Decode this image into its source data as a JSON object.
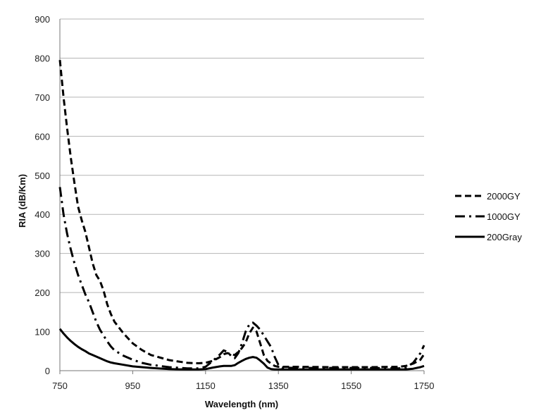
{
  "chart_data": {
    "type": "line",
    "xlabel": "Wavelength (nm)",
    "ylabel": "RIA (dB/Km)",
    "xlim": [
      750,
      1750
    ],
    "ylim": [
      0,
      900
    ],
    "xticks": [
      "750",
      "950",
      "1150",
      "1350",
      "1550",
      "1750"
    ],
    "yticks": [
      "0",
      "100",
      "200",
      "300",
      "400",
      "500",
      "600",
      "700",
      "800",
      "900"
    ],
    "grid": "horizontal",
    "legend_position": "right",
    "series": [
      {
        "name": "2000GY",
        "style": "dashed",
        "color": "#000000",
        "x": [
          750,
          760,
          770,
          780,
          790,
          800,
          810,
          820,
          830,
          840,
          850,
          860,
          870,
          880,
          890,
          900,
          925,
          950,
          975,
          1000,
          1050,
          1100,
          1130,
          1150,
          1170,
          1190,
          1200,
          1210,
          1220,
          1230,
          1240,
          1250,
          1260,
          1270,
          1280,
          1290,
          1300,
          1310,
          1320,
          1330,
          1340,
          1350,
          1400,
          1500,
          1600,
          1680,
          1700,
          1720,
          1740,
          1750
        ],
        "y": [
          795,
          700,
          620,
          545,
          480,
          420,
          385,
          355,
          315,
          275,
          245,
          230,
          205,
          170,
          145,
          125,
          95,
          70,
          53,
          40,
          27,
          20,
          19,
          20,
          25,
          35,
          42,
          45,
          42,
          40,
          48,
          58,
          72,
          95,
          110,
          100,
          70,
          40,
          25,
          18,
          12,
          10,
          10,
          9,
          9,
          10,
          12,
          18,
          28,
          42
        ]
      },
      {
        "name": "1000GY",
        "style": "dash-dot",
        "color": "#000000",
        "x": [
          750,
          760,
          770,
          780,
          790,
          800,
          810,
          820,
          830,
          840,
          850,
          860,
          870,
          880,
          890,
          900,
          925,
          950,
          975,
          1000,
          1050,
          1100,
          1130,
          1150,
          1170,
          1190,
          1200,
          1210,
          1220,
          1230,
          1240,
          1250,
          1260,
          1270,
          1280,
          1290,
          1300,
          1310,
          1320,
          1330,
          1340,
          1350,
          1360,
          1400,
          1500,
          1600,
          1680,
          1700,
          1720,
          1740,
          1750
        ],
        "y": [
          470,
          400,
          350,
          310,
          275,
          245,
          220,
          195,
          175,
          150,
          125,
          105,
          90,
          75,
          62,
          52,
          38,
          28,
          20,
          15,
          9,
          6,
          6,
          10,
          25,
          42,
          52,
          48,
          38,
          32,
          45,
          70,
          100,
          118,
          123,
          115,
          105,
          90,
          75,
          60,
          35,
          15,
          8,
          7,
          7,
          7,
          6,
          8,
          20,
          45,
          65
        ]
      },
      {
        "name": "200Gray",
        "style": "solid",
        "color": "#000000",
        "x": [
          750,
          760,
          770,
          780,
          790,
          800,
          810,
          820,
          830,
          840,
          850,
          860,
          870,
          880,
          890,
          900,
          925,
          950,
          975,
          1000,
          1050,
          1100,
          1130,
          1150,
          1170,
          1190,
          1200,
          1210,
          1220,
          1230,
          1240,
          1250,
          1260,
          1270,
          1280,
          1290,
          1300,
          1310,
          1320,
          1330,
          1340,
          1350,
          1400,
          1500,
          1600,
          1700,
          1720,
          1740,
          1750
        ],
        "y": [
          107,
          95,
          85,
          76,
          68,
          61,
          55,
          50,
          44,
          40,
          36,
          32,
          28,
          24,
          21,
          19,
          15,
          11,
          9,
          7,
          4,
          3,
          3,
          4,
          8,
          11,
          12,
          12,
          12,
          14,
          20,
          25,
          30,
          33,
          35,
          33,
          26,
          18,
          8,
          4,
          3,
          3,
          3,
          3,
          3,
          3,
          5,
          9,
          12
        ]
      }
    ]
  }
}
